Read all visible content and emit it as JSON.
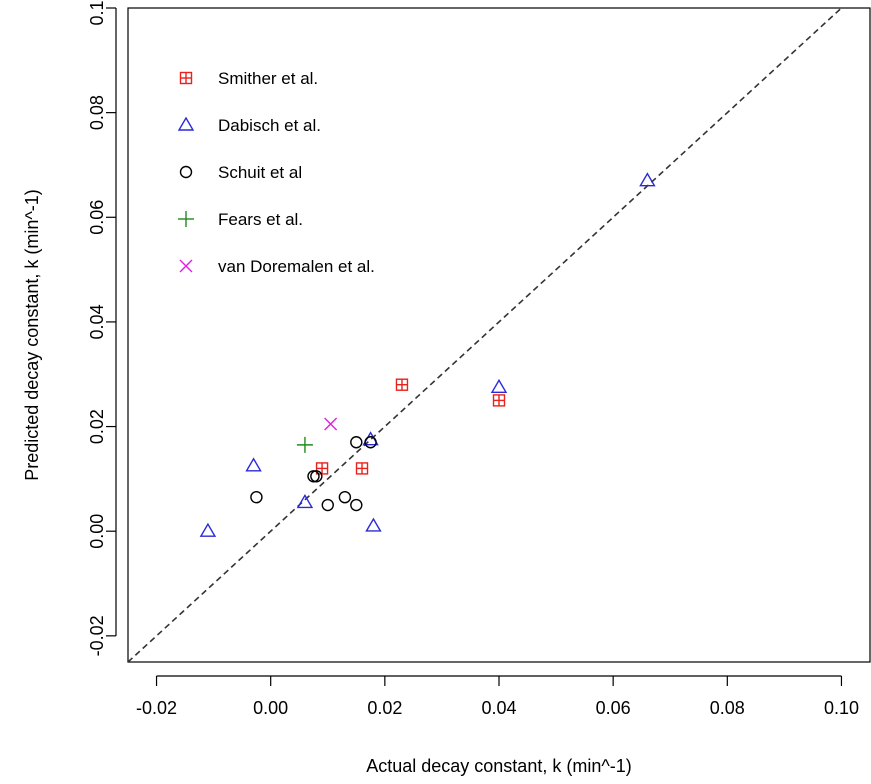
{
  "chart_data": {
    "type": "scatter",
    "title": "",
    "xlabel": "Actual decay constant, k (min^-1)",
    "ylabel": "Predicted decay constant, k (min^-1)",
    "xlim": [
      -0.025,
      0.105
    ],
    "ylim": [
      -0.025,
      0.1
    ],
    "x_ticks": [
      -0.02,
      0.0,
      0.02,
      0.04,
      0.06,
      0.08,
      0.1
    ],
    "x_tick_labels": [
      "-0.02",
      "0.00",
      "0.02",
      "0.04",
      "0.06",
      "0.08",
      "0.10"
    ],
    "y_ticks": [
      -0.02,
      0.0,
      0.02,
      0.04,
      0.06,
      0.08,
      0.1
    ],
    "y_tick_labels": [
      "-0.02",
      "0.00",
      "0.02",
      "0.04",
      "0.06",
      "0.08",
      "0.10"
    ],
    "grid": false,
    "legend_position": "top-left",
    "reference_line": {
      "type": "identity",
      "slope": 1,
      "intercept": 0,
      "style": "dashed",
      "color": "#333333"
    },
    "series": [
      {
        "name": "Smither et al.",
        "marker": "square-plus",
        "color": "#e8221c",
        "points": [
          [
            0.009,
            0.012
          ],
          [
            0.016,
            0.012
          ],
          [
            0.023,
            0.028
          ],
          [
            0.04,
            0.025
          ]
        ]
      },
      {
        "name": "Dabisch et al.",
        "marker": "triangle",
        "color": "#2a2ad8",
        "points": [
          [
            -0.011,
            0.0
          ],
          [
            -0.003,
            0.0125
          ],
          [
            0.006,
            0.0055
          ],
          [
            0.0175,
            0.0175
          ],
          [
            0.018,
            0.001
          ],
          [
            0.04,
            0.0275
          ],
          [
            0.066,
            0.067
          ]
        ]
      },
      {
        "name": "Schuit et al",
        "marker": "circle",
        "color": "#000000",
        "points": [
          [
            -0.0025,
            0.0065
          ],
          [
            0.0075,
            0.0105
          ],
          [
            0.008,
            0.0105
          ],
          [
            0.01,
            0.005
          ],
          [
            0.013,
            0.0065
          ],
          [
            0.015,
            0.005
          ],
          [
            0.015,
            0.017
          ],
          [
            0.0175,
            0.017
          ]
        ]
      },
      {
        "name": "Fears et al.",
        "marker": "plus",
        "color": "#1f8a1f",
        "points": [
          [
            0.006,
            0.0165
          ]
        ]
      },
      {
        "name": "van Doremalen et al.",
        "marker": "cross",
        "color": "#e020e0",
        "points": [
          [
            0.0105,
            0.0205
          ]
        ]
      }
    ]
  }
}
